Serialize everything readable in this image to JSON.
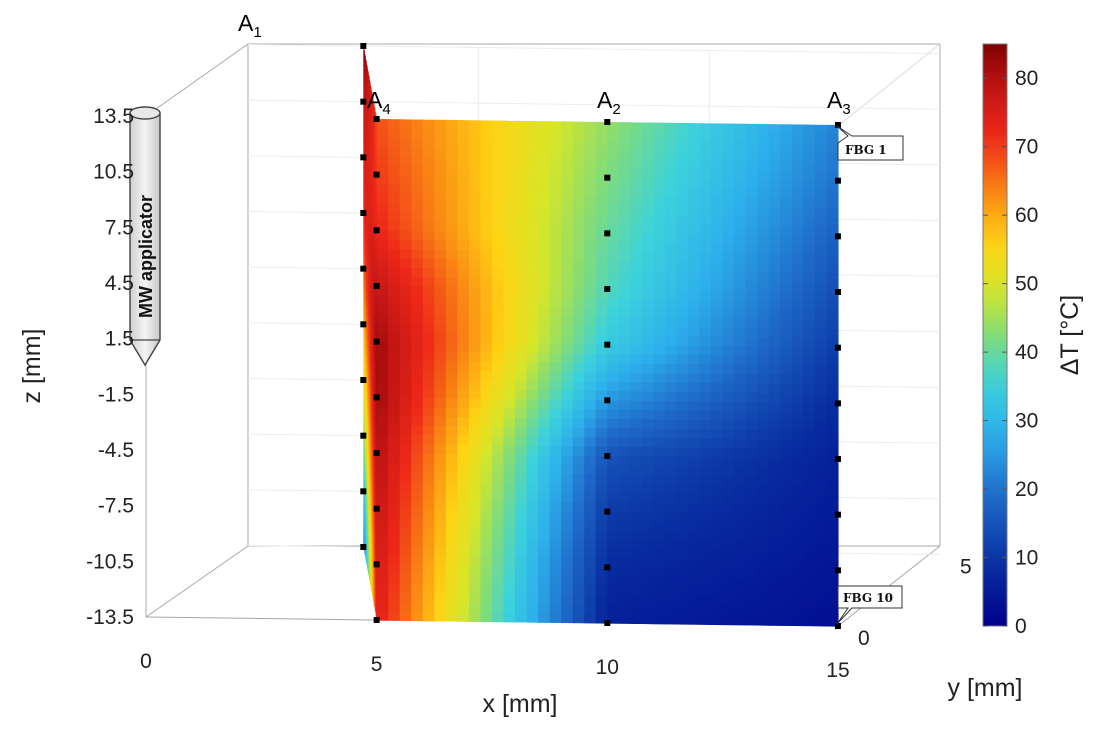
{
  "chart_data": {
    "type": "heatmap",
    "title": "",
    "xlabel": "x [mm]",
    "ylabel": "y [mm]",
    "zlabel": "z [mm]",
    "colorbar_label": "ΔT [°C]",
    "colormap": "jet",
    "clim": [
      0,
      85
    ],
    "xlim": [
      0,
      15
    ],
    "ylim": [
      0,
      5
    ],
    "zlim": [
      -13.5,
      13.5
    ],
    "x_ticks": [
      "0",
      "5",
      "10",
      "15"
    ],
    "y_ticks": [
      "0",
      "5"
    ],
    "z_ticks": [
      "13.5",
      "10.5",
      "7.5",
      "4.5",
      "1.5",
      "-1.5",
      "-4.5",
      "-7.5",
      "-10.5",
      "-13.5"
    ],
    "colorbar_ticks": [
      "80",
      "70",
      "60",
      "50",
      "40",
      "30",
      "20",
      "10",
      "0"
    ],
    "sensor_arrays": [
      {
        "name": "A",
        "sub": "1",
        "x": 2.5,
        "y": 5
      },
      {
        "name": "A",
        "sub": "4",
        "x": 5,
        "y": 0
      },
      {
        "name": "A",
        "sub": "2",
        "x": 10,
        "y": 0
      },
      {
        "name": "A",
        "sub": "3",
        "x": 15,
        "y": 0
      }
    ],
    "fbg_labels": [
      "FBG 1",
      "FBG 10"
    ],
    "applicator_label": "MW applicator",
    "sensor_z": [
      13.5,
      10.5,
      7.5,
      4.5,
      1.5,
      -1.5,
      -4.5,
      -7.5,
      -10.5,
      -13.5
    ],
    "surface_x": [
      2.5,
      5,
      10,
      15
    ],
    "surface_rows": [
      {
        "z": 13.5,
        "dT": [
          85,
          68,
          44,
          22
        ]
      },
      {
        "z": 10.5,
        "dT": [
          78,
          70,
          42,
          20
        ]
      },
      {
        "z": 7.5,
        "dT": [
          75,
          72,
          40,
          17
        ]
      },
      {
        "z": 4.5,
        "dT": [
          72,
          78,
          38,
          14
        ]
      },
      {
        "z": 1.5,
        "dT": [
          66,
          82,
          34,
          11
        ]
      },
      {
        "z": -1.5,
        "dT": [
          58,
          82,
          25,
          8
        ]
      },
      {
        "z": -4.5,
        "dT": [
          50,
          80,
          15,
          6
        ]
      },
      {
        "z": -7.5,
        "dT": [
          42,
          78,
          11,
          5
        ]
      },
      {
        "z": -10.5,
        "dT": [
          30,
          76,
          8,
          4
        ]
      },
      {
        "z": -13.5,
        "dT": [
          20,
          74,
          6,
          3
        ]
      }
    ]
  }
}
